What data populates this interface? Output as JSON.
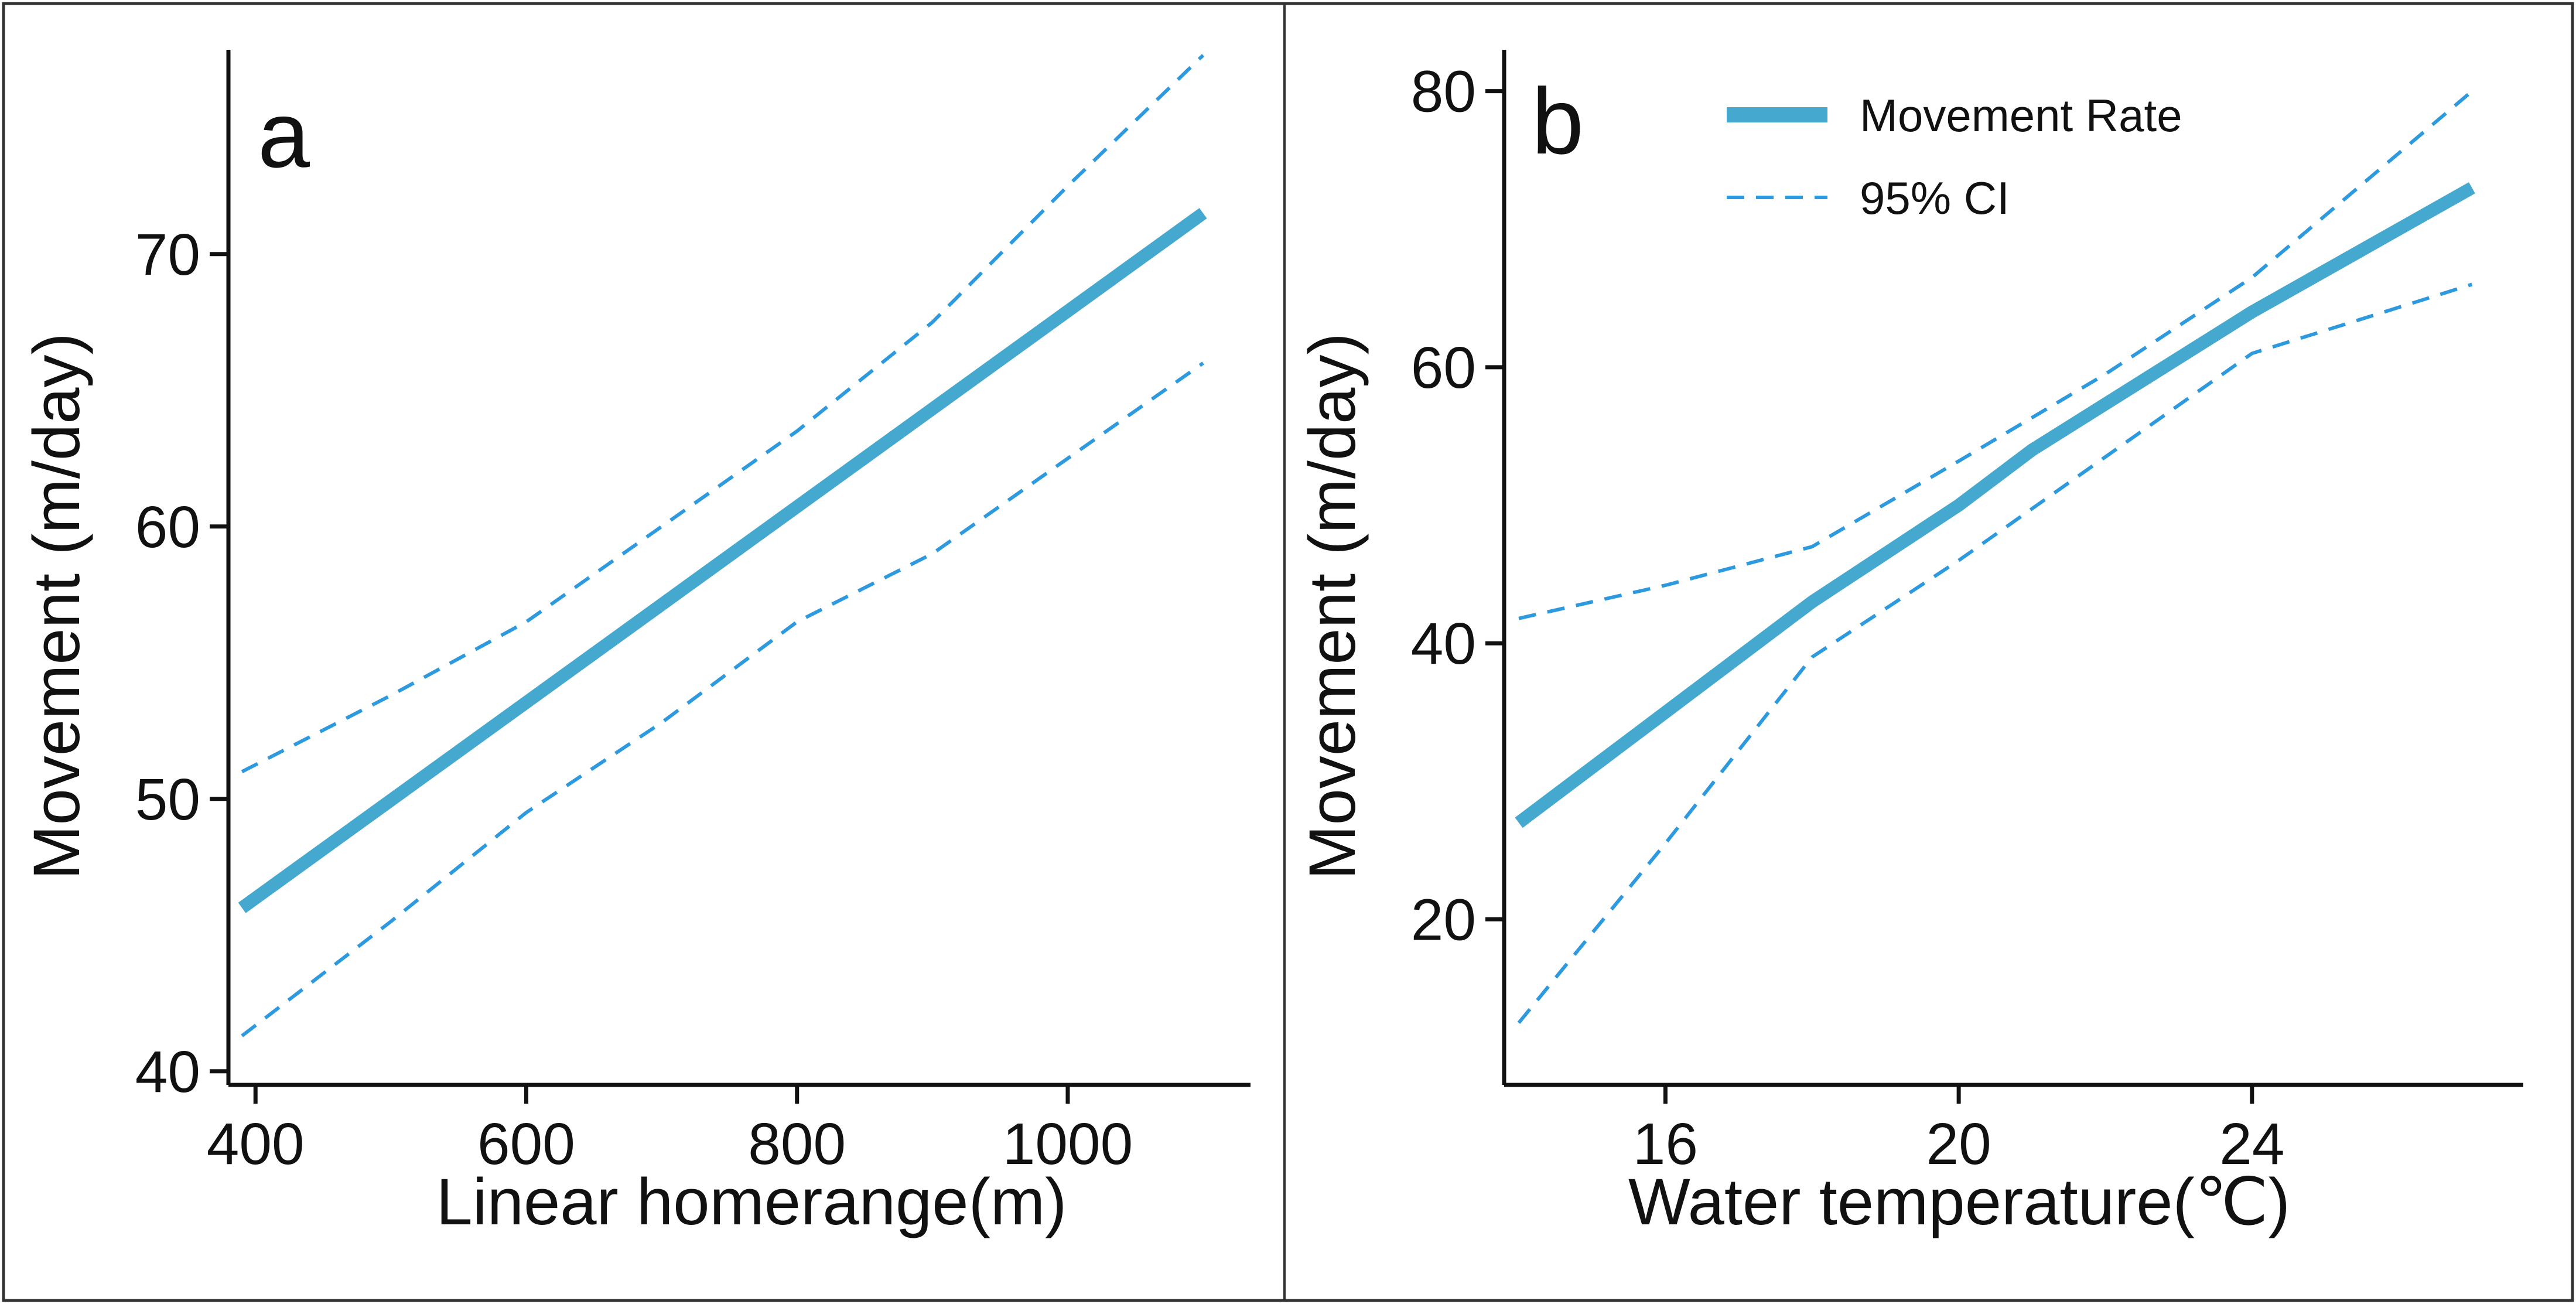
{
  "colors": {
    "line": "#45a9cf",
    "ci": "#2d9ae0",
    "axis": "#111111",
    "frame": "#333333"
  },
  "chart_data": [
    {
      "type": "line",
      "panel_label": "a",
      "xlabel": "Linear homerange(m)",
      "ylabel": "Movement (m/day)",
      "xlim": [
        380,
        1135
      ],
      "ylim": [
        39.5,
        77.5
      ],
      "xticks": [
        400,
        600,
        800,
        1000
      ],
      "xtick_labels": [
        "400",
        "600",
        "800",
        "1000"
      ],
      "yticks": [
        40,
        50,
        60,
        70
      ],
      "ytick_labels": [
        "40",
        "50",
        "60",
        "70"
      ],
      "series": [
        {
          "name": "Movement Rate",
          "style": "solid",
          "x": [
            390,
            1100
          ],
          "y": [
            46.0,
            71.5
          ]
        },
        {
          "name": "95% CI upper",
          "style": "dashed",
          "x": [
            390,
            500,
            600,
            700,
            800,
            900,
            1000,
            1100
          ],
          "y": [
            51.0,
            53.8,
            56.5,
            60.0,
            63.5,
            67.5,
            72.5,
            77.3
          ]
        },
        {
          "name": "95% CI lower",
          "style": "dashed",
          "x": [
            390,
            500,
            600,
            700,
            800,
            900,
            1000,
            1100
          ],
          "y": [
            41.3,
            45.5,
            49.5,
            52.8,
            56.5,
            59.0,
            62.5,
            66.0
          ]
        }
      ]
    },
    {
      "type": "line",
      "panel_label": "b",
      "xlabel": "Water temperature(℃)",
      "ylabel": "Movement (m/day)",
      "xlim": [
        13.8,
        27.7
      ],
      "ylim": [
        8,
        83
      ],
      "xticks": [
        16,
        20,
        24
      ],
      "xtick_labels": [
        "16",
        "20",
        "24"
      ],
      "yticks": [
        20,
        40,
        60,
        80
      ],
      "ytick_labels": [
        "20",
        "40",
        "60",
        "80"
      ],
      "legend": {
        "position": "top-right",
        "items": [
          "Movement Rate",
          "95% CI"
        ]
      },
      "series": [
        {
          "name": "Movement Rate",
          "style": "solid",
          "x": [
            14,
            16,
            18,
            20,
            21,
            24,
            27
          ],
          "y": [
            27.0,
            35.0,
            43.0,
            50.0,
            54.0,
            64.0,
            73.0
          ]
        },
        {
          "name": "95% CI upper",
          "style": "dashed",
          "x": [
            14,
            16,
            18,
            20,
            22,
            24,
            27
          ],
          "y": [
            41.8,
            44.2,
            47.0,
            53.2,
            59.5,
            66.5,
            80.0
          ]
        },
        {
          "name": "95% CI lower",
          "style": "dashed",
          "x": [
            14,
            16,
            18,
            20,
            22,
            24,
            27
          ],
          "y": [
            12.5,
            25.5,
            39.0,
            46.0,
            53.5,
            61.0,
            66.0
          ]
        }
      ]
    }
  ]
}
